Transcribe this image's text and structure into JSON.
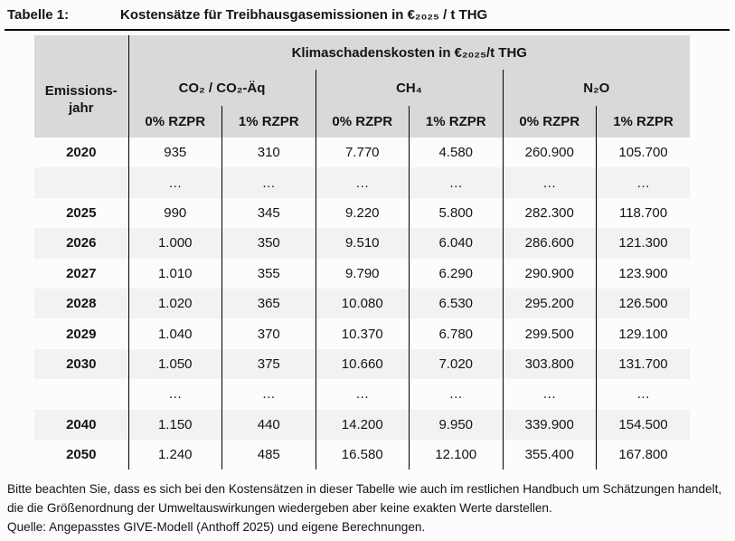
{
  "document": {
    "table_label": "Tabelle 1:",
    "table_title": "Kostensätze für Treibhausgasemissionen in €₂₀₂₅ / t THG"
  },
  "table": {
    "corner_header": {
      "line1": "Emissions-",
      "line2": "jahr"
    },
    "span_header": "Klimaschadenskosten in €₂₀₂₅/t THG",
    "group_headers": [
      "CO₂ / CO₂-Äq",
      "CH₄",
      "N₂O"
    ],
    "sub_headers": [
      "0% RZPR",
      "1% RZPR",
      "0% RZPR",
      "1% RZPR",
      "0% RZPR",
      "1% RZPR"
    ],
    "rows": [
      {
        "year": "2020",
        "values": [
          "935",
          "310",
          "7.770",
          "4.580",
          "260.900",
          "105.700"
        ],
        "shaded": false
      },
      {
        "year": "",
        "values": [
          "…",
          "…",
          "…",
          "…",
          "…",
          "…"
        ],
        "shaded": true
      },
      {
        "year": "2025",
        "values": [
          "990",
          "345",
          "9.220",
          "5.800",
          "282.300",
          "118.700"
        ],
        "shaded": false
      },
      {
        "year": "2026",
        "values": [
          "1.000",
          "350",
          "9.510",
          "6.040",
          "286.600",
          "121.300"
        ],
        "shaded": true
      },
      {
        "year": "2027",
        "values": [
          "1.010",
          "355",
          "9.790",
          "6.290",
          "290.900",
          "123.900"
        ],
        "shaded": false
      },
      {
        "year": "2028",
        "values": [
          "1.020",
          "365",
          "10.080",
          "6.530",
          "295.200",
          "126.500"
        ],
        "shaded": true
      },
      {
        "year": "2029",
        "values": [
          "1.040",
          "370",
          "10.370",
          "6.780",
          "299.500",
          "129.100"
        ],
        "shaded": false
      },
      {
        "year": "2030",
        "values": [
          "1.050",
          "375",
          "10.660",
          "7.020",
          "303.800",
          "131.700"
        ],
        "shaded": true
      },
      {
        "year": "",
        "values": [
          "…",
          "…",
          "…",
          "…",
          "…",
          "…"
        ],
        "shaded": false
      },
      {
        "year": "2040",
        "values": [
          "1.150",
          "440",
          "14.200",
          "9.950",
          "339.900",
          "154.500"
        ],
        "shaded": true
      },
      {
        "year": "2050",
        "values": [
          "1.240",
          "485",
          "16.580",
          "12.100",
          "355.400",
          "167.800"
        ],
        "shaded": false
      }
    ]
  },
  "notes": {
    "disclaimer": "Bitte beachten Sie, dass es sich bei den Kostensätzen in dieser Tabelle wie auch im restlichen Handbuch um Schätzungen handelt, die die Größenordnung der Umweltauswirkungen wiedergeben aber keine exakten Werte darstellen.",
    "source": "Quelle: Angepasstes GIVE-Modell (Anthoff 2025) und eigene Berechnungen."
  },
  "colors": {
    "header_fill": "#d9d9d9",
    "row_stripe": "#f2f2f2",
    "border": "#000000",
    "text": "#141414"
  }
}
